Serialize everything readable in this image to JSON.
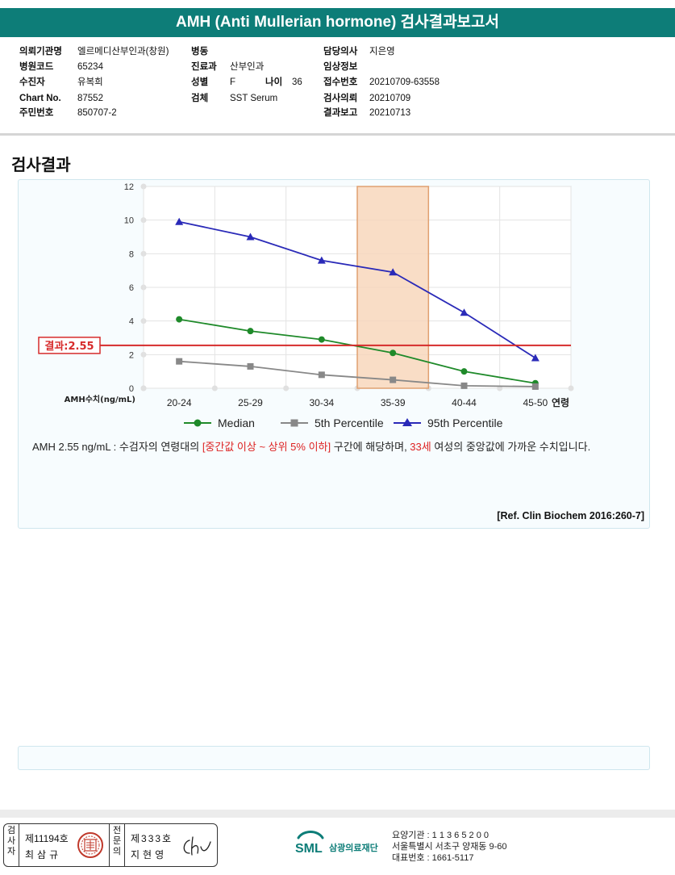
{
  "report": {
    "title": "AMH (Anti Mullerian hormone) 검사결과보고서",
    "section_title": "검사결과"
  },
  "patient_info": {
    "institution_label": "의뢰기관명",
    "institution": "엘르메디산부인과(창원)",
    "hospital_code_label": "병원코드",
    "hospital_code": "65234",
    "examinee_label": "수진자",
    "examinee": "유복희",
    "chart_no_label": "Chart No.",
    "chart_no": "87552",
    "resident_no_label": "주민번호",
    "resident_no": "850707-2",
    "ward_label": "병동",
    "ward": "",
    "department_label": "진료과",
    "department": "산부인과",
    "sex_label": "성별",
    "sex": "F",
    "age_label": "나이",
    "age": "36",
    "specimen_label": "검체",
    "specimen": "SST Serum",
    "doctor_label": "담당의사",
    "doctor": "지은영",
    "clinical_info_label": "임상정보",
    "clinical_info": "",
    "receipt_no_label": "접수번호",
    "receipt_no": "20210709-63558",
    "request_date_label": "검사의뢰",
    "request_date": "20210709",
    "report_date_label": "결과보고",
    "report_date": "20210713"
  },
  "chart_data": {
    "type": "line",
    "categories": [
      "20-24",
      "25-29",
      "30-34",
      "35-39",
      "40-44",
      "45-50"
    ],
    "x_suffix_label": "연령",
    "ylabel": "AMH수치(ng/mL)",
    "ylim": [
      0,
      12
    ],
    "yticks": [
      "0",
      "2",
      "4",
      "6",
      "8",
      "10",
      "12"
    ],
    "series": [
      {
        "name": "Median",
        "values": [
          4.1,
          3.4,
          2.9,
          2.1,
          1.0,
          0.3
        ],
        "color": "#1f8a2a",
        "marker": "circle"
      },
      {
        "name": "5th Percentile",
        "values": [
          1.6,
          1.3,
          0.8,
          0.5,
          0.15,
          0.1
        ],
        "color": "#888888",
        "marker": "square"
      },
      {
        "name": "95th Percentile",
        "values": [
          9.9,
          9.0,
          7.6,
          6.9,
          4.5,
          1.8
        ],
        "color": "#2a2ab8",
        "marker": "triangle"
      }
    ],
    "highlight_category": "35-39",
    "result_line": {
      "value": 2.55,
      "label": "결과:2.55",
      "color": "#d62b2b"
    },
    "grid": true,
    "legend_position": "bottom"
  },
  "result_text": {
    "part1": "AMH  2.55 ng/mL : 수검자의 연령대의 ",
    "highlight1": "[중간값 이상 ~ 상위 5% 이하]",
    "part2": "  구간에 해당하며, ",
    "highlight2": "33세",
    "part3": " 여성의 중앙값에 가까운 수치입니다.",
    "reference": "[Ref. Clin Biochem 2016:260-7]"
  },
  "signatures": {
    "inspector_label": "검사자",
    "inspector_no": "제11194호",
    "inspector_name": "최삼규",
    "specialist_label": "전문의",
    "specialist_no": "제333호",
    "specialist_name": "지현영"
  },
  "organization": {
    "logo_text": "SML",
    "name": "삼광의료재단",
    "care_code": "요양기관 : 1 1 3 6 5 2 0 0",
    "address": "서울특별시 서초구 양재동 9-60",
    "phone": "대표번호 : 1661-5117",
    "logo_color": "#0d7d78"
  }
}
